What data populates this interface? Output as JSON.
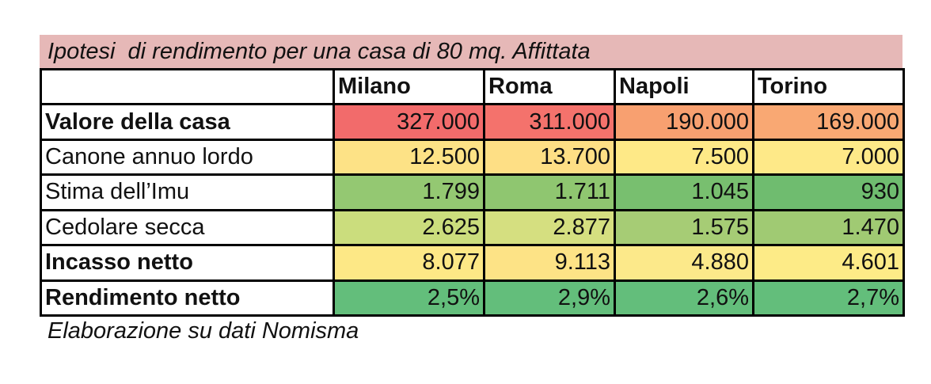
{
  "title": "Ipotesi  di rendimento per una casa di 80 mq. Affittata",
  "columns": [
    "",
    "Milano",
    "Roma",
    "Napoli",
    "Torino"
  ],
  "rows": [
    {
      "label": "Valore della casa",
      "bold": true,
      "values": [
        "327.000",
        "311.000",
        "190.000",
        "169.000"
      ],
      "colors": [
        "#f26b6b",
        "#f4726c",
        "#f8a070",
        "#f9a873"
      ]
    },
    {
      "label": "Canone annuo lordo",
      "bold": false,
      "values": [
        "12.500",
        "13.700",
        "7.500",
        "7.000"
      ],
      "colors": [
        "#fde286",
        "#fedf85",
        "#fee987",
        "#fee988"
      ]
    },
    {
      "label": "Stima dell’Imu",
      "bold": false,
      "values": [
        "1.799",
        "1.711",
        "1.045",
        "930"
      ],
      "colors": [
        "#94c872",
        "#8fc670",
        "#78bf6f",
        "#6fbc6f"
      ]
    },
    {
      "label": "Cedolare secca",
      "bold": false,
      "values": [
        "2.625",
        "2.877",
        "1.575",
        "1.470"
      ],
      "colors": [
        "#cbdd7d",
        "#d5df80",
        "#a6cc75",
        "#a0ca73"
      ]
    },
    {
      "label": "Incasso netto",
      "bold": true,
      "values": [
        "8.077",
        "9.113",
        "4.880",
        "4.601"
      ],
      "colors": [
        "#fde886",
        "#fde386",
        "#fce98a",
        "#fdeb87"
      ]
    },
    {
      "label": "Rendimento netto",
      "bold": true,
      "values": [
        "2,5%",
        "2,9%",
        "2,6%",
        "2,7%"
      ],
      "colors": [
        "#63be7b",
        "#63be7b",
        "#63be7b",
        "#63be7b"
      ]
    }
  ],
  "footnote": "Elaborazione su dati Nomisma"
}
